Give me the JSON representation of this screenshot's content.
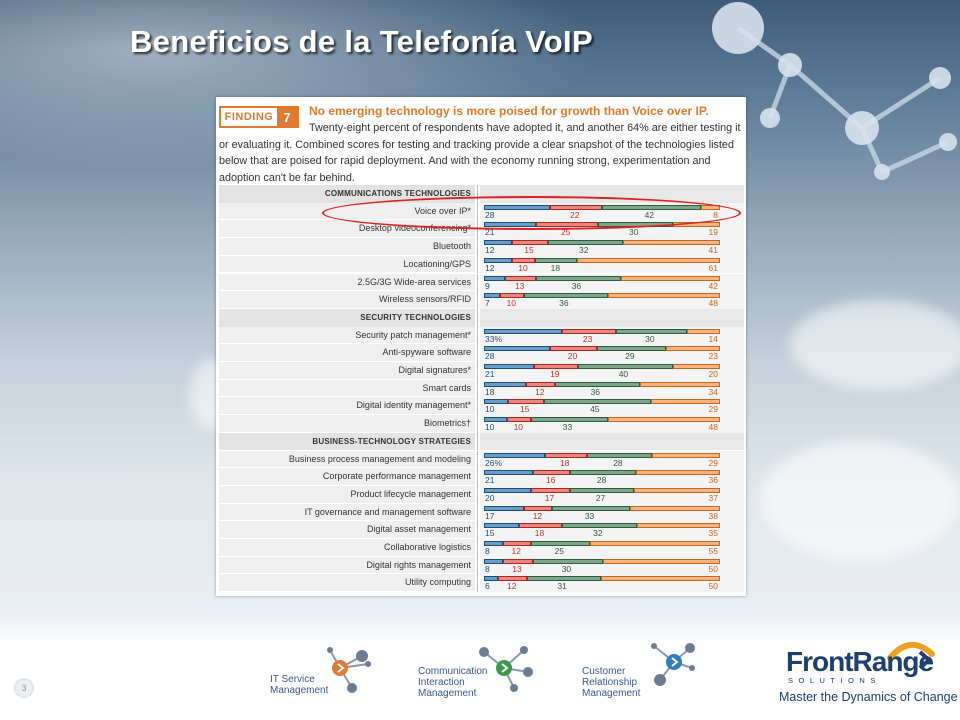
{
  "slide": {
    "title": "Beneficios de la Telefonía VoIP",
    "page_number": "3"
  },
  "finding": {
    "badge_word": "FINDING",
    "badge_number": "7",
    "headline": "No emerging technology is more poised for growth than Voice over IP.",
    "body": "Twenty-eight percent of respondents have adopted it, and another 64% are either testing it or evaluating it. Combined scores for testing and tracking provide a clear snapshot of the technologies listed below that are poised for rapid deployment. And with the economy running strong, experimentation and adoption can't be far behind."
  },
  "colors": {
    "adopted": "#1b4f7a",
    "testing": "#c0302a",
    "evaluating": "#2e5c3e",
    "no_plans": "#c9661a",
    "highlight": "#e02020",
    "accent": "#e07a2e",
    "brand": "#1e3f70"
  },
  "chart_data": {
    "type": "bar",
    "stacked": true,
    "orientation": "horizontal",
    "highlighted_row": "Voice over IP*",
    "series_order": [
      "segment 1 (blue)",
      "segment 2 (red)",
      "segment 3 (green)",
      "segment 4 (orange)"
    ],
    "groups": [
      {
        "section": "COMMUNICATIONS TECHNOLOGIES",
        "rows": [
          {
            "label": "Voice over IP*",
            "values": [
              "28",
              "22",
              "42",
              "8"
            ]
          },
          {
            "label": "Desktop videoconferencing*",
            "values": [
              "21",
              "25",
              "30",
              "19"
            ]
          },
          {
            "label": "Bluetooth",
            "values": [
              "12",
              "15",
              "32",
              "41"
            ]
          },
          {
            "label": "Locationing/GPS",
            "values": [
              "12",
              "10",
              "18",
              "61"
            ]
          },
          {
            "label": "2.5G/3G Wide-area services",
            "values": [
              "9",
              "13",
              "36",
              "42"
            ]
          },
          {
            "label": "Wireless sensors/RFID",
            "values": [
              "7",
              "10",
              "36",
              "48"
            ]
          }
        ]
      },
      {
        "section": "SECURITY TECHNOLOGIES",
        "rows": [
          {
            "label": "Security patch management*",
            "values": [
              "33%",
              "23",
              "30",
              "14"
            ]
          },
          {
            "label": "Anti-spyware software",
            "values": [
              "28",
              "20",
              "29",
              "23"
            ]
          },
          {
            "label": "Digital signatures*",
            "values": [
              "21",
              "19",
              "40",
              "20"
            ]
          },
          {
            "label": "Smart cards",
            "values": [
              "18",
              "12",
              "36",
              "34"
            ]
          },
          {
            "label": "Digital identity management*",
            "values": [
              "10",
              "15",
              "45",
              "29"
            ]
          },
          {
            "label": "Biometrics†",
            "values": [
              "10",
              "10",
              "33",
              "48"
            ]
          }
        ]
      },
      {
        "section": "BUSINESS-TECHNOLOGY STRATEGIES",
        "rows": [
          {
            "label": "Business process management and modeling",
            "values": [
              "26%",
              "18",
              "28",
              "29"
            ]
          },
          {
            "label": "Corporate performance management",
            "values": [
              "21",
              "16",
              "28",
              "36"
            ]
          },
          {
            "label": "Product lifecycle management",
            "values": [
              "20",
              "17",
              "27",
              "37"
            ]
          },
          {
            "label": "IT governance and management software",
            "values": [
              "17",
              "12",
              "33",
              "38"
            ]
          },
          {
            "label": "Digital asset management",
            "values": [
              "15",
              "18",
              "32",
              "35"
            ]
          },
          {
            "label": "Collaborative logistics",
            "values": [
              "8",
              "12",
              "25",
              "55"
            ]
          },
          {
            "label": "Digital rights management",
            "values": [
              "8",
              "13",
              "30",
              "50"
            ]
          },
          {
            "label": "Utility computing",
            "values": [
              "6",
              "12",
              "31",
              "50"
            ]
          }
        ]
      }
    ]
  },
  "footer": {
    "products": [
      {
        "lines": [
          "IT Service",
          "Management"
        ],
        "icon": "network-nodes-icon",
        "accent": "#e07a2e"
      },
      {
        "lines": [
          "Communication",
          "Interaction",
          "Management"
        ],
        "icon": "network-nodes-icon",
        "accent": "#3a9a4a"
      },
      {
        "lines": [
          "Customer",
          "Relationship",
          "Management"
        ],
        "icon": "network-nodes-icon",
        "accent": "#2f7fc0"
      }
    ],
    "logo": {
      "name": "FrontRange",
      "sub": "SOLUTIONS",
      "tagline": "Master the Dynamics of Change"
    }
  }
}
